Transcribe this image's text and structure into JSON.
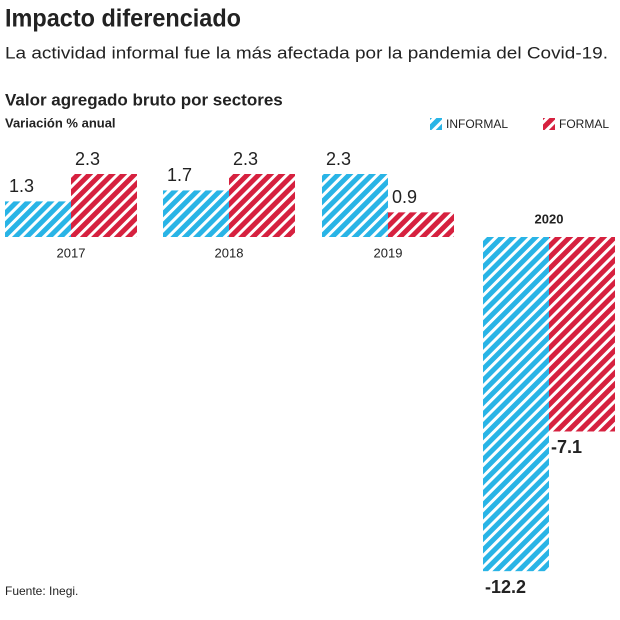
{
  "chart_data": {
    "type": "bar",
    "title": "Impacto diferenciado",
    "subtitle": "La actividad informal fue la más afectada por la pandemia del Covid-19.",
    "chart_title": "Valor agregado bruto por sectores",
    "y_label": "Variación % anual",
    "source": "Fuente: Inegi.",
    "categories": [
      "2017",
      "2018",
      "2019",
      "2020"
    ],
    "series": [
      {
        "name": "INFORMAL",
        "color": "#29b4e6",
        "values": [
          1.3,
          1.7,
          2.3,
          -12.2
        ]
      },
      {
        "name": "FORMAL",
        "color": "#d6213f",
        "values": [
          2.3,
          2.3,
          0.9,
          -7.1
        ]
      }
    ],
    "hatched": true,
    "legend": "top-right"
  }
}
